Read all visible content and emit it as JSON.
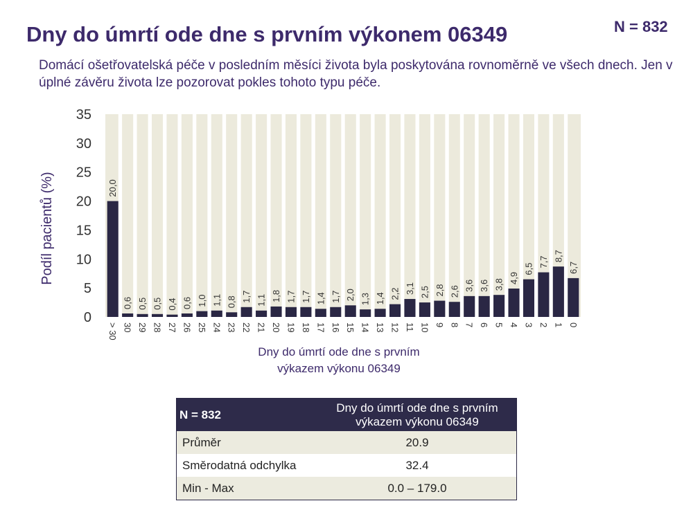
{
  "header": {
    "title": "Dny do úmrtí ode dne s prvním výkonem 06349",
    "n_label": "N = 832",
    "subtitle": "Domácí ošetřovatelská péče v posledním měsíci života byla poskytována rovnoměrně ve všech dnech. Jen v úplné závěru života lze pozorovat pokles tohoto typu péče."
  },
  "colors": {
    "bar": "#2a2744",
    "plot_background": "#eceadc",
    "title": "#3d2a6b"
  },
  "chart_data": {
    "type": "bar",
    "categories": [
      "> 30",
      "30",
      "29",
      "28",
      "27",
      "26",
      "25",
      "24",
      "23",
      "22",
      "21",
      "20",
      "19",
      "18",
      "17",
      "16",
      "15",
      "14",
      "13",
      "12",
      "11",
      "10",
      "9",
      "8",
      "7",
      "6",
      "5",
      "4",
      "3",
      "2",
      "1",
      "0"
    ],
    "values": [
      20.0,
      0.6,
      0.5,
      0.5,
      0.4,
      0.6,
      1.0,
      1.1,
      0.8,
      1.7,
      1.1,
      1.8,
      1.7,
      1.7,
      1.4,
      1.7,
      2.0,
      1.3,
      1.4,
      2.2,
      3.1,
      2.5,
      2.8,
      2.6,
      3.6,
      3.6,
      3.8,
      4.9,
      6.5,
      7.7,
      8.7,
      6.7
    ],
    "value_labels": [
      "20,0",
      "0,6",
      "0,5",
      "0,5",
      "0,4",
      "0,6",
      "1,0",
      "1,1",
      "0,8",
      "1,7",
      "1,1",
      "1,8",
      "1,7",
      "1,7",
      "1,4",
      "1,7",
      "2,0",
      "1,3",
      "1,4",
      "2,2",
      "3,1",
      "2,5",
      "2,8",
      "2,6",
      "3,6",
      "3,6",
      "3,8",
      "4,9",
      "6,5",
      "7,7",
      "8,7",
      "6,7"
    ],
    "y_ticks": [
      "0",
      "5",
      "10",
      "15",
      "20",
      "25",
      "30",
      "35"
    ],
    "ylim": [
      0,
      35
    ],
    "ylabel": "Podíl pacientů (%)",
    "xlabel_line1": "Dny do úmrtí ode dne s prvním",
    "xlabel_line2": "výkazem výkonu 06349",
    "legend": "none",
    "grid": false
  },
  "table": {
    "header_left": "N = 832",
    "header_right_line1": "Dny do úmrtí ode dne s prvním",
    "header_right_line2": "výkazem výkonu 06349",
    "rows": [
      {
        "label": "Průměr",
        "value": "20.9"
      },
      {
        "label": "Směrodatná odchylka",
        "value": "32.4"
      },
      {
        "label": "Min - Max",
        "value": "0.0 – 179.0"
      }
    ]
  }
}
